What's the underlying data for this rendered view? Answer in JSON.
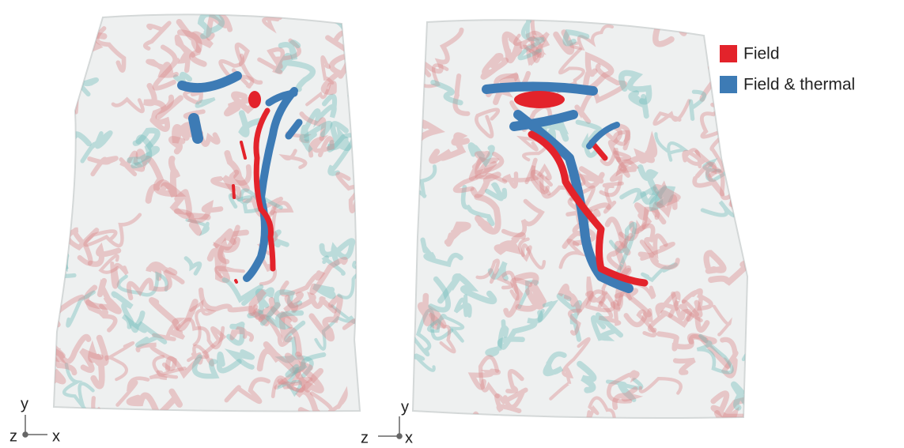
{
  "legend": {
    "items": [
      {
        "label": "Field",
        "color": "#e3232b"
      },
      {
        "label": "Field & thermal",
        "color": "#3d7bb5"
      }
    ]
  },
  "panels": [
    {
      "axis": {
        "y": "y",
        "z": "z",
        "x": "x"
      }
    },
    {
      "axis": {
        "y": "y",
        "z": "z",
        "x": "x"
      }
    }
  ]
}
